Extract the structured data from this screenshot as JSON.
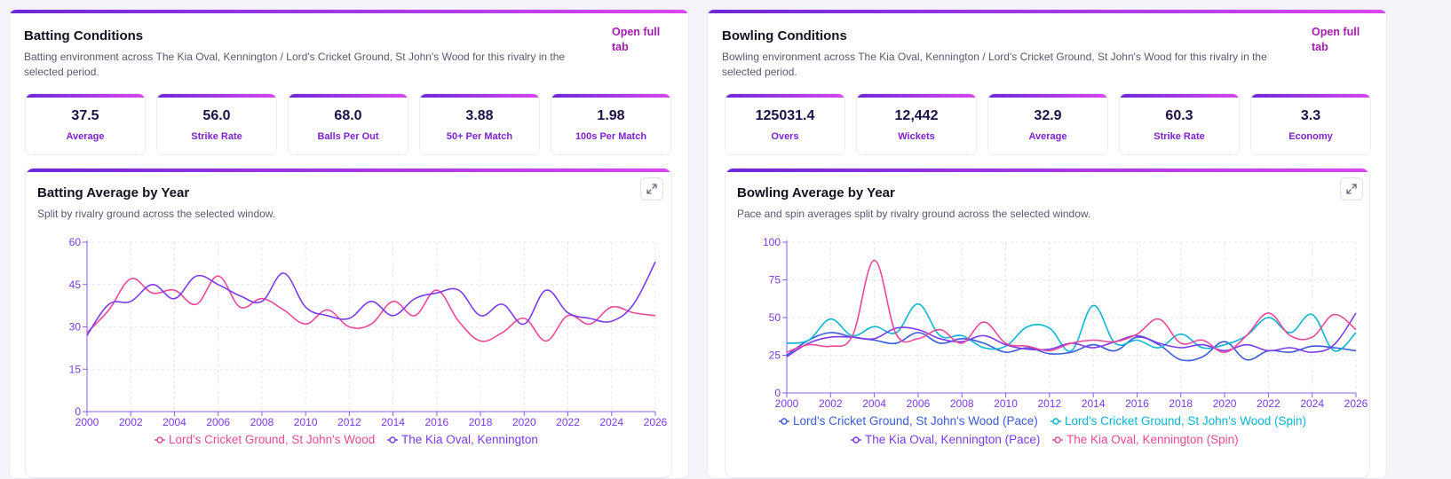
{
  "batting": {
    "title": "Batting Conditions",
    "description": "Batting environment across The Kia Oval, Kennington / Lord's Cricket Ground, St John's Wood for this rivalry in the selected period.",
    "open_link": "Open full tab",
    "stats": [
      {
        "value": "37.5",
        "label": "Average"
      },
      {
        "value": "56.0",
        "label": "Strike Rate"
      },
      {
        "value": "68.0",
        "label": "Balls Per Out"
      },
      {
        "value": "3.88",
        "label": "50+ Per Match"
      },
      {
        "value": "1.98",
        "label": "100s Per Match"
      }
    ],
    "chart_title": "Batting Average by Year",
    "chart_subtitle": "Split by rivalry ground across the selected window."
  },
  "bowling": {
    "title": "Bowling Conditions",
    "description": "Bowling environment across The Kia Oval, Kennington / Lord's Cricket Ground, St John's Wood for this rivalry in the selected period.",
    "open_link": "Open full tab",
    "stats": [
      {
        "value": "125031.4",
        "label": "Overs"
      },
      {
        "value": "12,442",
        "label": "Wickets"
      },
      {
        "value": "32.9",
        "label": "Average"
      },
      {
        "value": "60.3",
        "label": "Strike Rate"
      },
      {
        "value": "3.3",
        "label": "Economy"
      }
    ],
    "chart_title": "Bowling Average by Year",
    "chart_subtitle": "Pace and spin averages split by rivalry ground across the selected window."
  },
  "chart_data": [
    {
      "type": "line",
      "title": "Batting Average by Year",
      "xlim": [
        2000,
        2026
      ],
      "ylim": [
        0,
        60
      ],
      "xticks": [
        2000,
        2002,
        2004,
        2006,
        2008,
        2010,
        2012,
        2014,
        2016,
        2018,
        2020,
        2022,
        2024,
        2026
      ],
      "yticks": [
        0,
        15,
        30,
        45,
        60
      ],
      "grid": true,
      "legend": "bottom",
      "x": [
        2000,
        2001,
        2002,
        2003,
        2004,
        2005,
        2006,
        2007,
        2008,
        2009,
        2010,
        2011,
        2012,
        2013,
        2014,
        2015,
        2016,
        2017,
        2018,
        2019,
        2020,
        2021,
        2022,
        2023,
        2024,
        2025,
        2026
      ],
      "series": [
        {
          "name": "Lord's Cricket Ground, St John's Wood",
          "color": "#ec4899",
          "values": [
            28,
            36,
            47,
            42,
            43,
            38,
            48,
            37,
            40,
            36,
            31,
            36,
            30,
            31,
            39,
            34,
            43,
            32,
            25,
            28,
            33,
            25,
            34,
            31,
            37,
            35,
            34
          ]
        },
        {
          "name": "The Kia Oval, Kennington",
          "color": "#7c3aed",
          "values": [
            27,
            38,
            39,
            45,
            40,
            48,
            45,
            41,
            39,
            49,
            37,
            34,
            33,
            39,
            34,
            40,
            42,
            43,
            34,
            38,
            31,
            43,
            35,
            33,
            32,
            38,
            53
          ]
        }
      ]
    },
    {
      "type": "line",
      "title": "Bowling Average by Year",
      "xlim": [
        2000,
        2026
      ],
      "ylim": [
        0,
        100
      ],
      "xticks": [
        2000,
        2002,
        2004,
        2006,
        2008,
        2010,
        2012,
        2014,
        2016,
        2018,
        2020,
        2022,
        2024,
        2026
      ],
      "yticks": [
        0,
        25,
        50,
        75,
        100
      ],
      "grid": true,
      "legend": "bottom",
      "x": [
        2000,
        2001,
        2002,
        2003,
        2004,
        2005,
        2006,
        2007,
        2008,
        2009,
        2010,
        2011,
        2012,
        2013,
        2014,
        2015,
        2016,
        2017,
        2018,
        2019,
        2020,
        2021,
        2022,
        2023,
        2024,
        2025,
        2026
      ],
      "series": [
        {
          "name": "Lord's Cricket Ground, St John's Wood (Pace)",
          "color": "#3b5bdb",
          "values": [
            25,
            35,
            40,
            37,
            35,
            33,
            40,
            33,
            36,
            33,
            27,
            30,
            26,
            27,
            32,
            28,
            37,
            32,
            22,
            24,
            34,
            22,
            28,
            27,
            31,
            30,
            28
          ]
        },
        {
          "name": "Lord's Cricket Ground, St John's Wood (Spin)",
          "color": "#06b6d4",
          "values": [
            33,
            35,
            49,
            38,
            44,
            40,
            59,
            38,
            38,
            30,
            31,
            44,
            43,
            28,
            58,
            33,
            35,
            30,
            39,
            30,
            32,
            38,
            50,
            40,
            52,
            28,
            40
          ]
        },
        {
          "name": "The Kia Oval, Kennington (Pace)",
          "color": "#7c3aed",
          "values": [
            24,
            33,
            37,
            37,
            36,
            43,
            42,
            36,
            34,
            38,
            32,
            29,
            29,
            33,
            30,
            34,
            38,
            33,
            30,
            32,
            28,
            32,
            28,
            30,
            27,
            32,
            53
          ]
        },
        {
          "name": "The Kia Oval, Kennington (Spin)",
          "color": "#ec4899",
          "values": [
            27,
            32,
            31,
            38,
            88,
            39,
            36,
            42,
            33,
            47,
            33,
            31,
            28,
            33,
            35,
            34,
            39,
            49,
            33,
            35,
            27,
            38,
            53,
            38,
            37,
            52,
            42
          ]
        }
      ]
    }
  ]
}
